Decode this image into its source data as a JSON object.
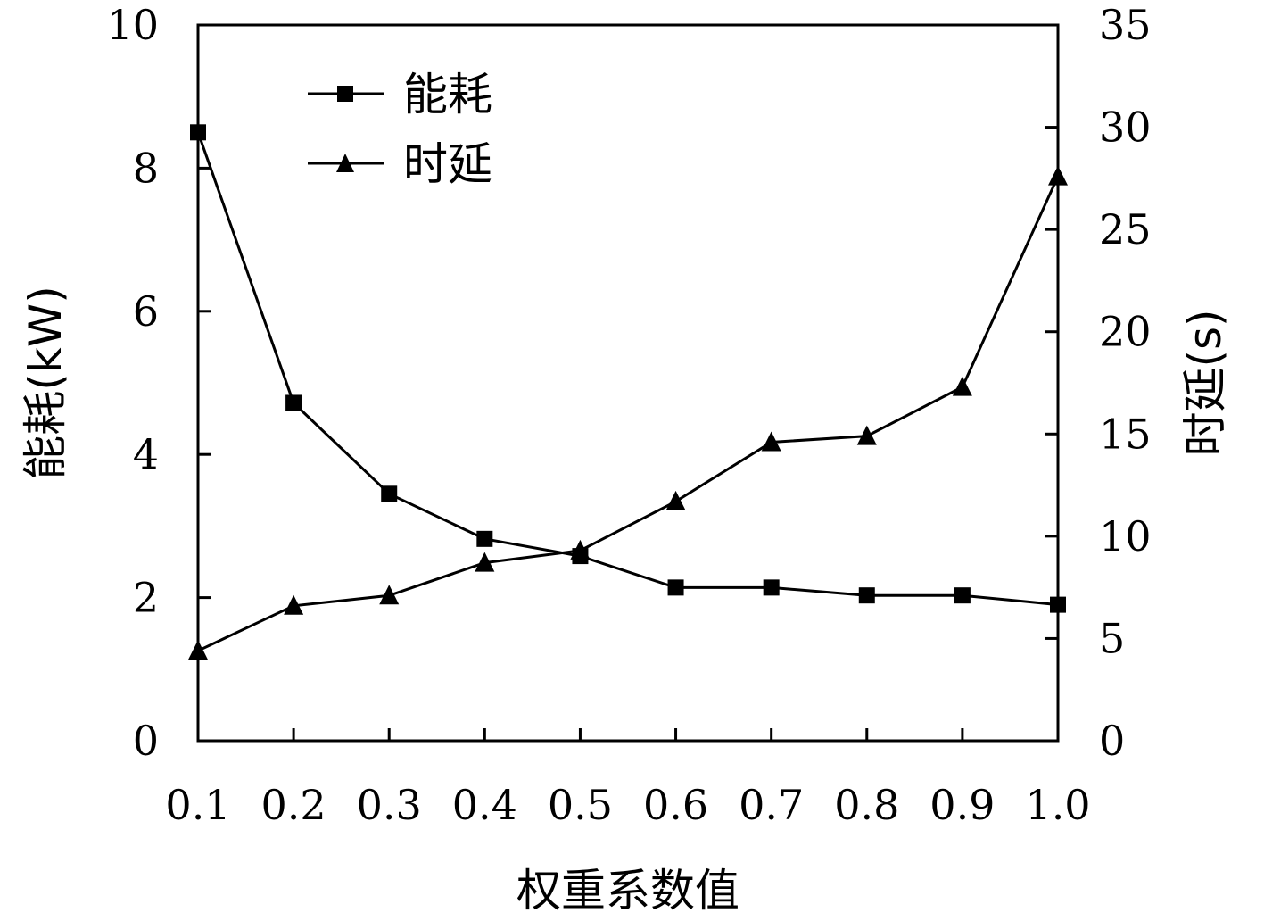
{
  "chart_data": {
    "type": "line",
    "x": [
      0.1,
      0.2,
      0.3,
      0.4,
      0.5,
      0.6,
      0.7,
      0.8,
      0.9,
      1.0
    ],
    "x_tick_labels": [
      "0.1",
      "0.2",
      "0.3",
      "0.4",
      "0.5",
      "0.6",
      "0.7",
      "0.8",
      "0.9",
      "1.0"
    ],
    "xlabel": "权重系数值",
    "ylabel_left": "能耗(kW)",
    "ylabel_right": "时延(s)",
    "ylim_left": [
      0,
      10
    ],
    "ylim_right": [
      0,
      35
    ],
    "left_ticks": [
      0,
      2,
      4,
      6,
      8,
      10
    ],
    "right_ticks": [
      0,
      5,
      10,
      15,
      20,
      25,
      30,
      35
    ],
    "grid": false,
    "legend_position": "top-left",
    "series": [
      {
        "name": "能耗",
        "axis": "left",
        "marker": "square",
        "values": [
          8.5,
          4.72,
          3.45,
          2.82,
          2.58,
          2.14,
          2.14,
          2.03,
          2.03,
          1.9
        ]
      },
      {
        "name": "时延",
        "axis": "right",
        "marker": "triangle",
        "values": [
          4.4,
          6.6,
          7.1,
          8.7,
          9.3,
          11.7,
          14.6,
          14.9,
          17.3,
          27.6
        ]
      }
    ]
  }
}
